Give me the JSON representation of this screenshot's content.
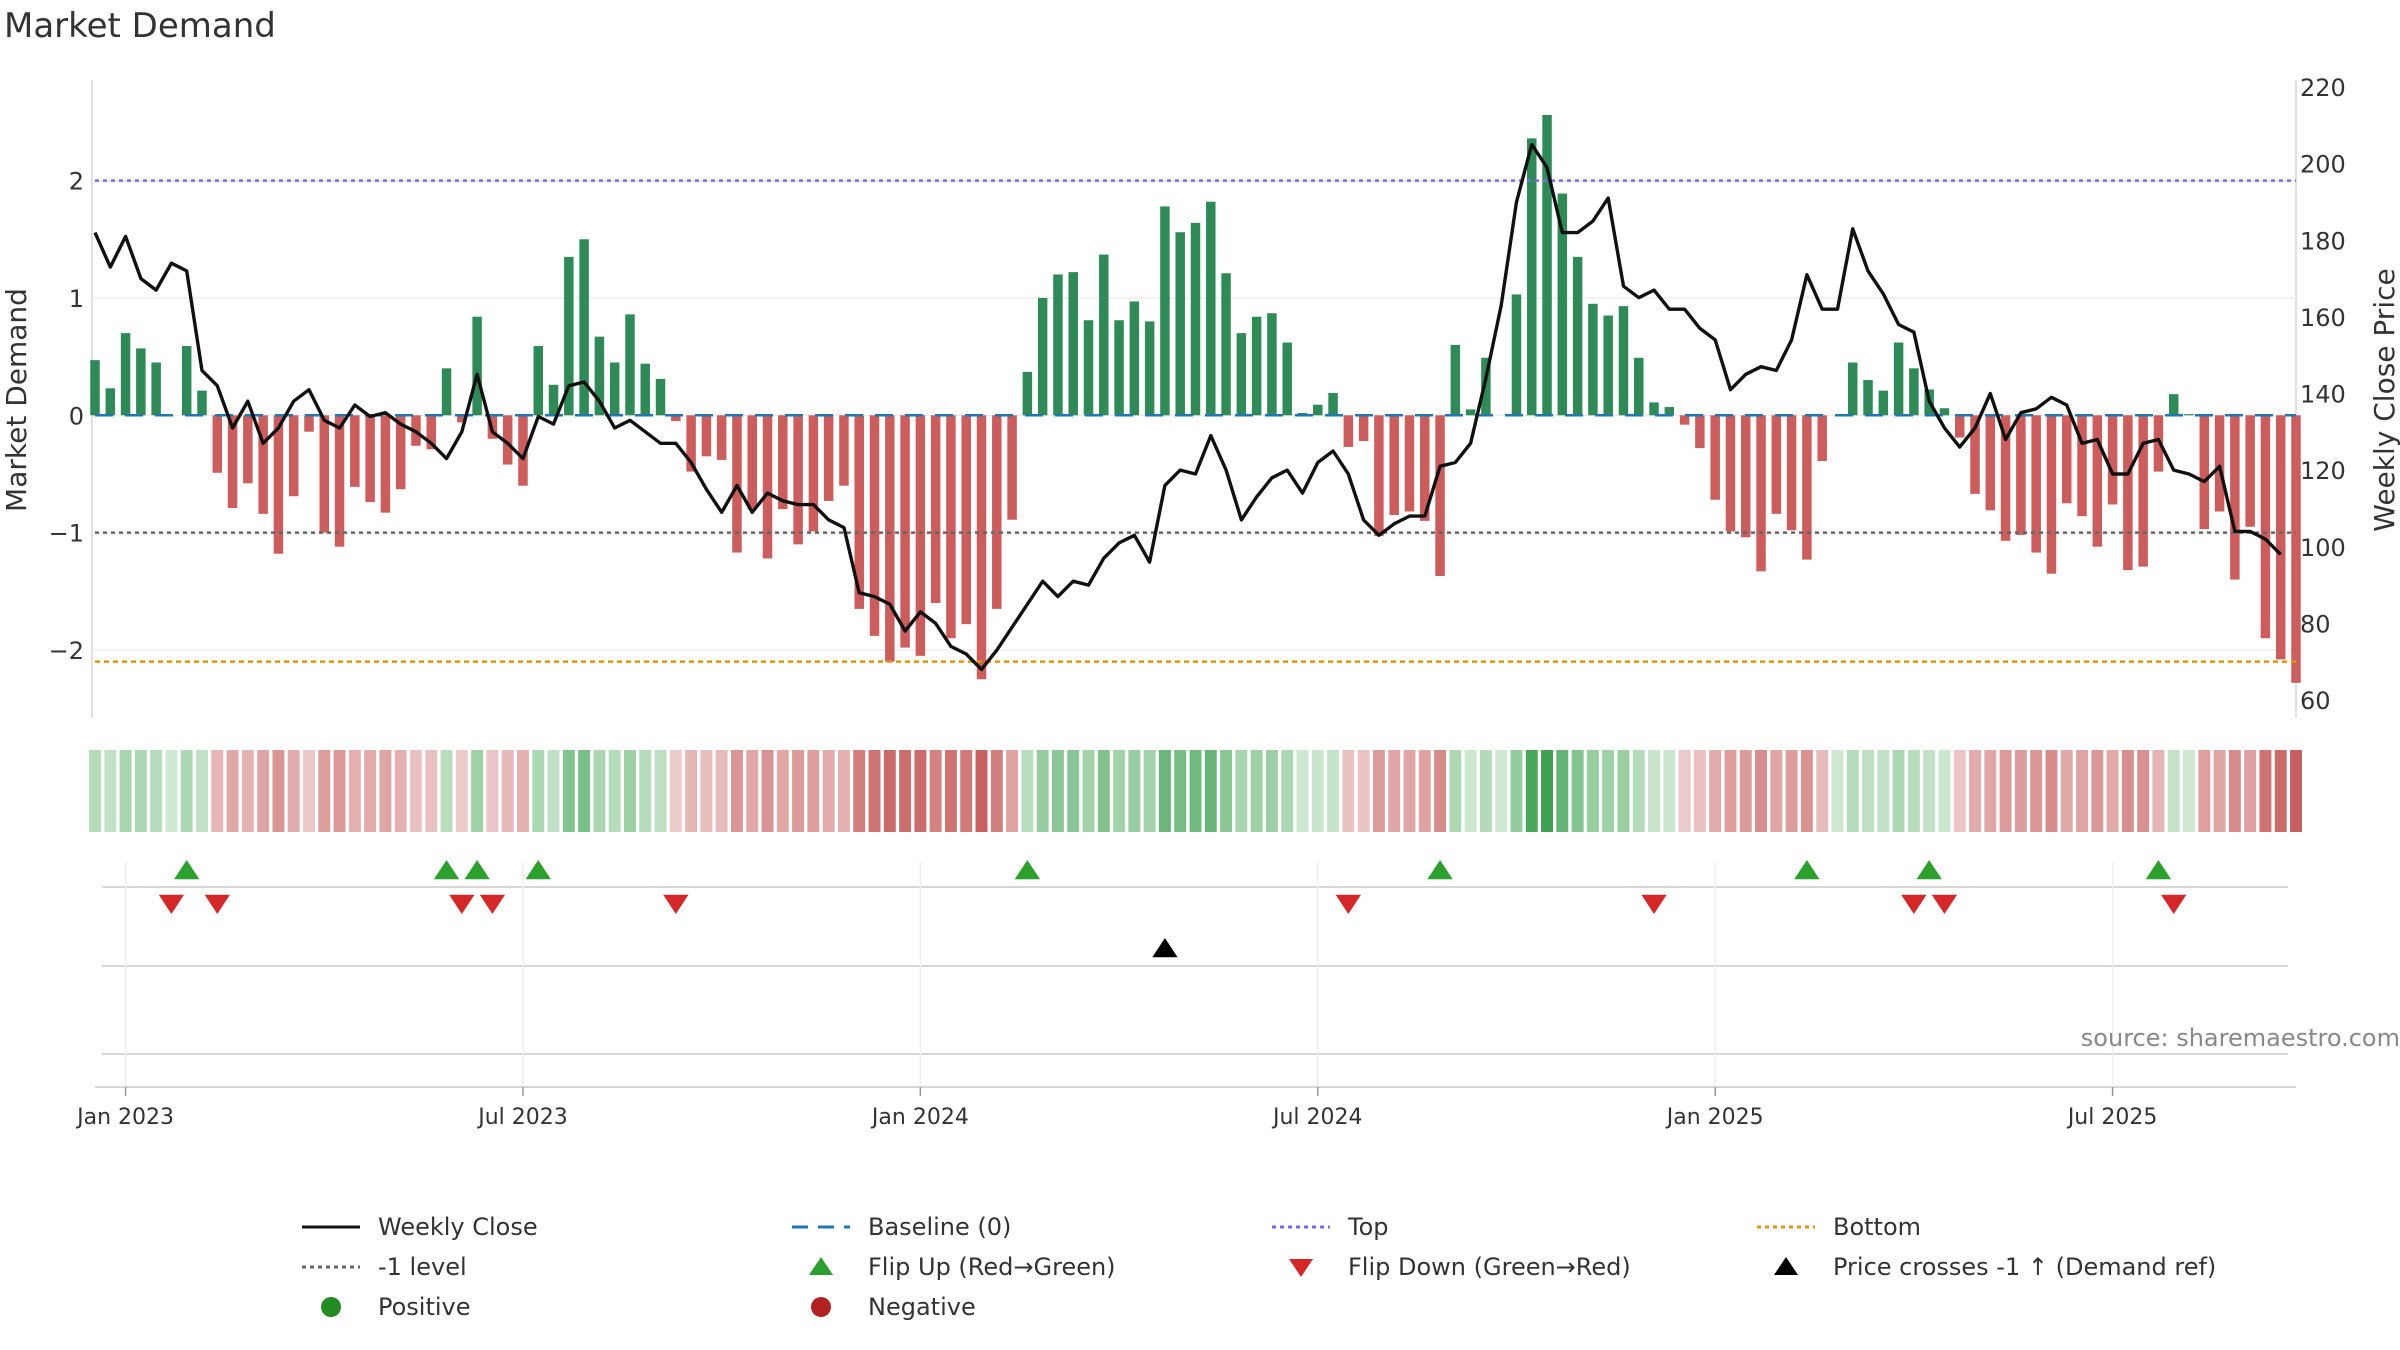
{
  "title": "Market Demand",
  "source": "source: sharemaestro.com",
  "chart_data": {
    "type": "bar",
    "title": "Market Demand",
    "ylabel_left": "Market Demand",
    "ylabel_right": "Weekly Close Price",
    "left_ticks": [
      "2",
      "1",
      "0",
      "−1",
      "−2"
    ],
    "left_tick_values": [
      2,
      1,
      0,
      -1,
      -2
    ],
    "right_ticks": [
      "220",
      "200",
      "180",
      "160",
      "140",
      "120",
      "100",
      "80",
      "60"
    ],
    "right_tick_values": [
      220,
      200,
      180,
      160,
      140,
      120,
      100,
      80,
      60
    ],
    "ylim_left": [
      -2.58,
      2.9
    ],
    "ylim_right": [
      60,
      220
    ],
    "x_ticks": [
      "Jan 2023",
      "Jul 2023",
      "Jan 2024",
      "Jul 2024",
      "Jan 2025",
      "Jul 2025"
    ],
    "x_tick_weeks": [
      2,
      28,
      54,
      80,
      106,
      132
    ],
    "reference_lines": {
      "top": 2.0,
      "minus_one": -1.0,
      "bottom": -2.1,
      "baseline": 0
    },
    "demand": [
      0.47,
      0.23,
      0.7,
      0.57,
      0.45,
      0,
      0.59,
      0.21,
      -0.49,
      -0.79,
      -0.58,
      -0.84,
      -1.18,
      -0.69,
      -0.14,
      -1.0,
      -1.12,
      -0.61,
      -0.74,
      -0.83,
      -0.63,
      -0.26,
      -0.29,
      0.4,
      -0.06,
      0.84,
      -0.2,
      -0.42,
      -0.6,
      0.59,
      0.26,
      1.35,
      1.5,
      0.67,
      0.45,
      0.86,
      0.44,
      0.31,
      -0.05,
      -0.48,
      -0.35,
      -0.38,
      -1.17,
      -0.8,
      -1.22,
      -0.8,
      -1.1,
      -0.99,
      -0.73,
      -0.6,
      -1.65,
      -1.88,
      -2.1,
      -1.98,
      -2.05,
      -1.6,
      -1.9,
      -1.78,
      -2.25,
      -1.65,
      -0.89,
      0.37,
      1.0,
      1.2,
      1.22,
      0.81,
      1.37,
      0.81,
      0.97,
      0.8,
      1.78,
      1.56,
      1.64,
      1.82,
      1.21,
      0.7,
      0.84,
      0.87,
      0.62,
      0.02,
      0.09,
      0.19,
      -0.27,
      -0.22,
      -1.03,
      -0.85,
      -0.82,
      -0.9,
      -1.37,
      0.6,
      0.05,
      0.49,
      0,
      1.03,
      2.36,
      2.56,
      1.89,
      1.35,
      0.95,
      0.85,
      0.93,
      0.49,
      0.11,
      0.07,
      -0.08,
      -0.28,
      -0.72,
      -0.99,
      -1.04,
      -1.33,
      -0.84,
      -0.98,
      -1.23,
      -0.39,
      0,
      0.45,
      0.3,
      0.21,
      0.62,
      0.4,
      0.22,
      0.06,
      -0.19,
      -0.67,
      -0.81,
      -1.07,
      -1.02,
      -1.17,
      -1.35,
      -0.75,
      -0.86,
      -1.12,
      -0.76,
      -1.32,
      -1.29,
      -0.48,
      0.18,
      0.01,
      -0.97,
      -0.82,
      -1.4,
      -0.95,
      -1.9,
      -2.08,
      -2.28
    ],
    "weekly_close": [
      182,
      173,
      181,
      170,
      167,
      174,
      172,
      146,
      142,
      131,
      138,
      127,
      131,
      138,
      141,
      133,
      131,
      137,
      134,
      135,
      132,
      130,
      127,
      123,
      130,
      145,
      130,
      127,
      123,
      134,
      132,
      142,
      143,
      138,
      131,
      133,
      130,
      127,
      127,
      122,
      115,
      109,
      116,
      109,
      114,
      112,
      111,
      111,
      107,
      105,
      88,
      87,
      85,
      78,
      83,
      80,
      74,
      72,
      68,
      73,
      79,
      85,
      91,
      87,
      91,
      90,
      97,
      101,
      103,
      96,
      116,
      120,
      119,
      129,
      120,
      107,
      113,
      118,
      120,
      114,
      122,
      125,
      119,
      107,
      103,
      106,
      108,
      108,
      121,
      122,
      127,
      144,
      163,
      190,
      205,
      199,
      182,
      182,
      185,
      191,
      168,
      165,
      167,
      162,
      162,
      157,
      154,
      141,
      145,
      147,
      146,
      154,
      171,
      162,
      162,
      183,
      172,
      166,
      158,
      156,
      138,
      131,
      126,
      131,
      140,
      128,
      135,
      136,
      139,
      137,
      127,
      128,
      119,
      119,
      127,
      128,
      120,
      119,
      117,
      121,
      104,
      104,
      102,
      98
    ],
    "demand_strip": [
      0.47,
      0.23,
      0.7,
      0.57,
      0.45,
      0,
      0.59,
      0.21,
      -0.49,
      -0.79,
      -0.58,
      -0.84,
      -1.18,
      -0.69,
      -0.14,
      -1.0,
      -1.12,
      -0.61,
      -0.74,
      -0.83,
      -0.63,
      -0.26,
      -0.29,
      0.4,
      -0.06,
      0.84,
      -0.2,
      -0.42,
      -0.6,
      0.59,
      0.26,
      1.35,
      1.5,
      0.67,
      0.45,
      0.86,
      0.44,
      0.31,
      -0.05,
      -0.48,
      -0.35,
      -0.38,
      -1.17,
      -0.8,
      -1.22,
      -0.8,
      -1.1,
      -0.99,
      -0.73,
      -0.6,
      -1.65,
      -1.88,
      -2.1,
      -1.98,
      -2.05,
      -1.6,
      -1.9,
      -1.78,
      -2.25,
      -1.65,
      -0.89,
      0.37,
      1.0,
      1.2,
      1.22,
      0.81,
      1.37,
      0.81,
      0.97,
      0.8,
      1.78,
      1.56,
      1.64,
      1.82,
      1.21,
      0.7,
      0.84,
      0.87,
      0.62,
      0.02,
      0.09,
      0.19,
      -0.27,
      -0.22,
      -1.03,
      -0.85,
      -0.82,
      -0.9,
      -1.37,
      0.6,
      0.05,
      0.49,
      0,
      1.03,
      2.36,
      2.56,
      1.89,
      1.35,
      0.95,
      0.85,
      0.93,
      0.49,
      0.11,
      0.07,
      -0.08,
      -0.28,
      -0.72,
      -0.99,
      -1.04,
      -1.33,
      -0.84,
      -0.98,
      -1.23,
      -0.39,
      0,
      0.45,
      0.3,
      0.21,
      0.62,
      0.4,
      0.22,
      0.06,
      -0.19,
      -0.67,
      -0.81,
      -1.07,
      -1.02,
      -1.17,
      -1.35,
      -0.75,
      -0.86,
      -1.12,
      -0.76,
      -1.32,
      -1.29,
      -0.48,
      0.18,
      0.01,
      -0.97,
      -0.82,
      -1.4,
      -0.95,
      -1.9,
      -2.08,
      -2.28
    ],
    "flip_up_weeks": [
      6,
      23,
      25,
      29,
      61,
      88,
      112,
      120,
      135
    ],
    "flip_down_weeks": [
      5,
      8,
      24,
      26,
      38,
      82,
      102,
      119,
      121,
      136
    ],
    "price_cross_weeks": [
      70
    ]
  },
  "legend": [
    {
      "label": "Weekly Close",
      "kind": "line-solid",
      "color": "#111111"
    },
    {
      "label": "-1 level",
      "kind": "line-dotted",
      "color": "#666666"
    },
    {
      "label": "Positive",
      "kind": "circle",
      "color": "#228b22"
    },
    {
      "label": "Baseline (0)",
      "kind": "line-dashed",
      "color": "#1f77b4"
    },
    {
      "label": "Flip Up (Red→Green)",
      "kind": "tri-up",
      "color": "#2ca02c"
    },
    {
      "label": "Negative",
      "kind": "circle",
      "color": "#b22222"
    },
    {
      "label": "Top",
      "kind": "line-dotted",
      "color": "#7b68ee"
    },
    {
      "label": "Flip Down (Green→Red)",
      "kind": "tri-down",
      "color": "#d62728"
    },
    {
      "label": "Bottom",
      "kind": "line-dotted",
      "color": "#e69500"
    },
    {
      "label": "Price crosses -1 ↑ (Demand ref)",
      "kind": "tri-up",
      "color": "#000000"
    }
  ],
  "colors": {
    "positive_bar": "#2e8b57",
    "negative_bar": "#cd5c5c",
    "price_line": "#111111",
    "top_line": "#7b68ee",
    "bottom_line": "#e69500",
    "minus_one_line": "#666666",
    "baseline": "#1f77b4",
    "flip_up": "#2ca02c",
    "flip_down": "#d62728",
    "cross": "#000000"
  }
}
